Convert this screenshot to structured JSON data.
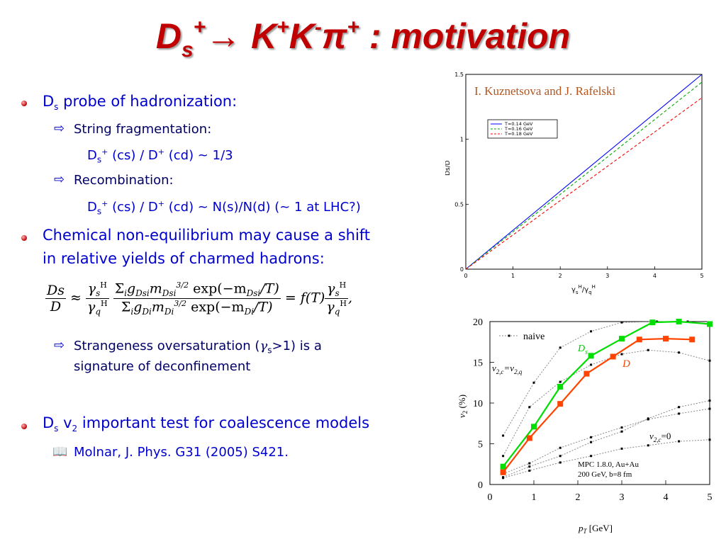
{
  "slide": {
    "title": {
      "ds": "D",
      "ds_sub": "s",
      "ds_sup": "+",
      "arrow": "→",
      "k1": "K",
      "k1_sup": "+",
      "k2": "K",
      "k2_sup": "-",
      "pi": "π",
      "pi_sup": "+",
      "rest": " : motivation"
    },
    "bullets": {
      "b1": {
        "pre": "D",
        "sub": "s",
        "post": " probe of hadronization:"
      },
      "b1_a": "String fragmentation:",
      "b1_a_eq": {
        "a": "D",
        "a_sub": "s",
        "a_sup": "+",
        "b": " (cs) / D",
        "b_sup": "+",
        "c": " (cd) ~ 1/3"
      },
      "b1_b": "Recombination:",
      "b1_b_eq": {
        "a": "D",
        "a_sub": "s",
        "a_sup": "+",
        "b": " (cs) / D",
        "b_sup": "+",
        "c": " (cd) ~ N(s)/N(d) (~ 1 at LHC?)"
      },
      "b2_line1": "Chemical non-equilibrium may cause a shift",
      "b2_line2": "in relative yields of charmed hadrons:",
      "b2_a_pre": "Strangeness oversaturation (",
      "b2_a_gamma": "γ",
      "b2_a_sub": "s",
      "b2_a_post": ">1) is a",
      "b2_a_line2": "signature of deconfinement",
      "b3": {
        "pre": "D",
        "sub": "s",
        "mid": " v",
        "sub2": "2",
        "post": " important test for coalescence models"
      },
      "b3_a": "Molnar, J. Phys. G31 (2005) S421."
    },
    "formula": {
      "lhs_num": "Ds",
      "lhs_den": "D",
      "approx": "≈",
      "g_num": "γ",
      "g_num_sub": "s",
      "g_num_sup": "H",
      "g_den": "γ",
      "g_den_sub": "q",
      "g_den_sup": "H",
      "sum_num": "Σ",
      "sum_num_sub": "i",
      "g_var": "g",
      "g_num_s": "Dsi",
      "m_var": "m",
      "m_num_s": "Dsi",
      "exp_pow": "3/2",
      "exp_num": "exp(−m",
      "exp_num_s": "Dsi",
      "exp_tail": "/T)",
      "sum_den_sub": "i",
      "g_den_s": "Di",
      "m_den_s": "Di",
      "exp_den_s": "Di",
      "eq": "=",
      "f": "f(T)",
      "comma": ","
    }
  },
  "chart_data": [
    {
      "type": "line",
      "title": "I. Kuznetsova and J. Rafelski",
      "xlabel_main": "γ",
      "xlabel_sub1": "s",
      "xlabel_sup1": "H",
      "xlabel_slash": "/",
      "xlabel_main2": "γ",
      "xlabel_sub2": "q",
      "xlabel_sup2": "H",
      "ylabel": "Ds/D",
      "xlim": [
        0,
        5
      ],
      "ylim": [
        0,
        1.5
      ],
      "xticks": [
        "0",
        "1",
        "2",
        "3",
        "4",
        "5"
      ],
      "yticks": [
        "0",
        "0.5",
        "1",
        "1.5"
      ],
      "legend": "upper-left",
      "series": [
        {
          "name": "T=0.14 GeV",
          "color": "#0000ff",
          "style": "solid",
          "x": [
            0,
            5
          ],
          "y": [
            0,
            1.5
          ]
        },
        {
          "name": "T=0.16 GeV",
          "color": "#00aa00",
          "style": "dashed",
          "x": [
            0,
            5
          ],
          "y": [
            0,
            1.44
          ]
        },
        {
          "name": "T=0.18 GeV",
          "color": "#ff0000",
          "style": "dashed",
          "x": [
            0,
            5
          ],
          "y": [
            0,
            1.32
          ]
        }
      ]
    },
    {
      "type": "line",
      "xlabel": "p",
      "xlabel_sub": "T",
      "xlabel_unit": " [GeV]",
      "ylabel": "v",
      "ylabel_sub": "2",
      "ylabel_unit": " (%)",
      "xlim": [
        0,
        5
      ],
      "ylim": [
        0,
        20
      ],
      "xticks": [
        "0",
        "1",
        "2",
        "3",
        "4",
        "5"
      ],
      "yticks": [
        "0",
        "5",
        "10",
        "15",
        "20"
      ],
      "legend_label": "naive",
      "annotations": {
        "ds_label": "D",
        "ds_label_sub": "s",
        "d_label": "D",
        "v2eq_a": "v",
        "v2eq_sub_a": "2,c",
        "v2eq_eq": "=v",
        "v2eq_sub_b": "2,q",
        "v2zero": "v",
        "v2zero_sub": "2,c",
        "v2zero_tail": "=0",
        "info1": "MPC 1.8.0, Au+Au",
        "info2": "200 GeV, b=8 fm"
      },
      "series": [
        {
          "name": "D_s",
          "color": "#00dd00",
          "marker": "square",
          "x": [
            0.3,
            1.0,
            1.6,
            2.3,
            3.0,
            3.7,
            4.3,
            5.0
          ],
          "y": [
            2.2,
            7.1,
            12.0,
            15.8,
            17.9,
            19.9,
            20.0,
            19.7
          ]
        },
        {
          "name": "D",
          "color": "#ff4400",
          "marker": "square",
          "x": [
            0.3,
            0.9,
            1.6,
            2.2,
            2.8,
            3.4,
            4.0,
            4.6
          ],
          "y": [
            1.5,
            5.7,
            9.9,
            13.6,
            15.7,
            17.8,
            17.9,
            17.8
          ]
        },
        {
          "name": "naive",
          "color": "#888888",
          "style": "dotted",
          "x": [
            0.3,
            1.0,
            1.6,
            2.3,
            3.0,
            3.8,
            4.5,
            5.0
          ],
          "y": [
            6.0,
            12.5,
            16.8,
            18.8,
            19.9,
            20.0,
            20.0,
            19.6
          ]
        },
        {
          "name": "v2_c_eq_q",
          "color": "#888888",
          "style": "dotted",
          "x": [
            0.3,
            0.9,
            1.6,
            2.3,
            3.0,
            3.6,
            4.3,
            5.0
          ],
          "y": [
            3.5,
            9.5,
            12.6,
            14.7,
            16.0,
            16.5,
            16.2,
            15.2
          ]
        },
        {
          "name": "mid1",
          "color": "#888888",
          "style": "dotted",
          "x": [
            0.3,
            0.9,
            1.6,
            2.3,
            3.0,
            3.6,
            4.3,
            5.0
          ],
          "y": [
            1.3,
            2.6,
            4.5,
            5.8,
            7.0,
            8.0,
            8.7,
            9.3
          ]
        },
        {
          "name": "mid2",
          "color": "#888888",
          "style": "dotted",
          "x": [
            0.3,
            0.9,
            1.6,
            2.3,
            3.0,
            3.6,
            4.3,
            5.0
          ],
          "y": [
            0.9,
            2.2,
            3.5,
            5.2,
            6.5,
            8.1,
            9.5,
            10.3
          ]
        },
        {
          "name": "v2_c_zero",
          "color": "#888888",
          "style": "dotted",
          "x": [
            0.3,
            0.9,
            1.6,
            2.3,
            3.0,
            3.6,
            4.3,
            5.0
          ],
          "y": [
            0.8,
            1.7,
            2.7,
            3.5,
            4.4,
            4.8,
            5.3,
            5.5
          ]
        }
      ]
    }
  ]
}
